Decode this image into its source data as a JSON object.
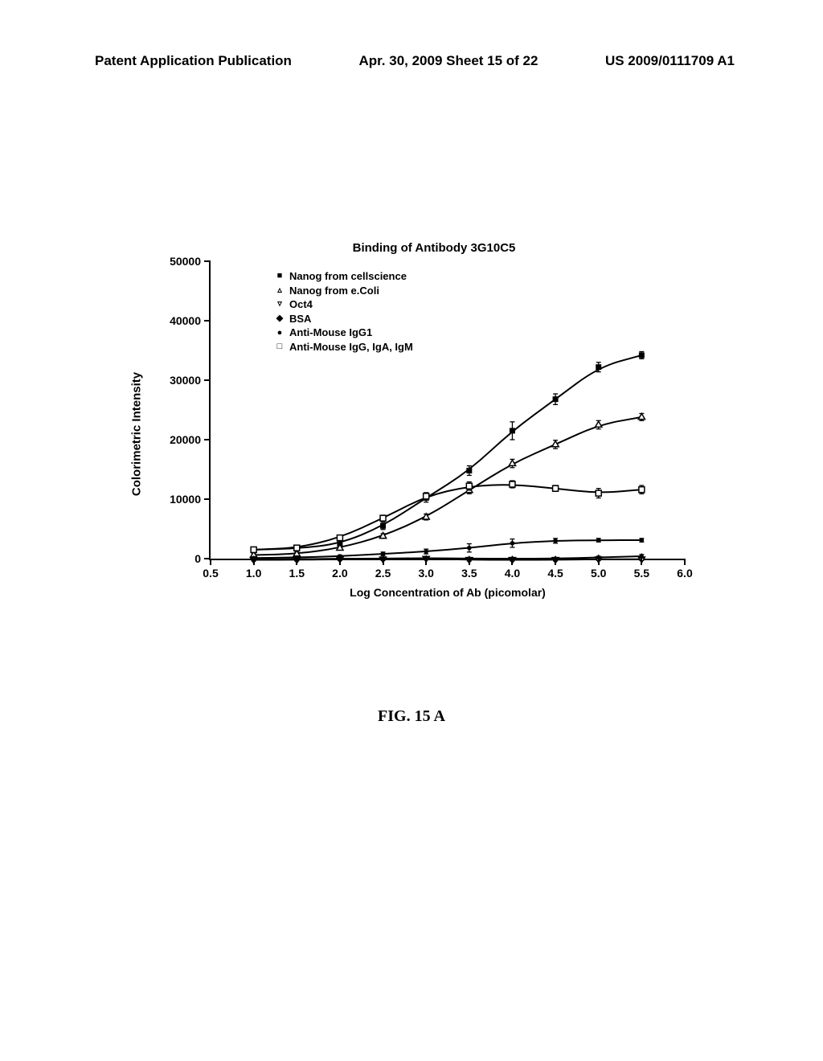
{
  "header": {
    "left": "Patent Application Publication",
    "center": "Apr. 30, 2009  Sheet 15 of 22",
    "right": "US 2009/0111709 A1"
  },
  "figure_label": "FIG. 15 A",
  "chart": {
    "type": "scatter-line",
    "title": "Binding of Antibody 3G10C5",
    "xlabel": "Log Concentration of Ab (picomolar)",
    "ylabel": "Colorimetric Intensity",
    "xlim": [
      0.5,
      6.0
    ],
    "ylim": [
      0,
      50000
    ],
    "xticks": [
      0.5,
      1.0,
      1.5,
      2.0,
      2.5,
      3.0,
      3.5,
      4.0,
      4.5,
      5.0,
      5.5,
      6.0
    ],
    "yticks": [
      0,
      10000,
      20000,
      30000,
      40000,
      50000
    ],
    "background_color": "#ffffff",
    "axis_color": "#000000",
    "line_color": "#000000",
    "line_width": 2,
    "marker_size": 7,
    "title_fontsize": 15,
    "label_fontsize": 14,
    "tick_fontsize": 14,
    "legend_fontsize": 13,
    "legend": [
      {
        "marker": "■",
        "label": "Nanog from cellscience"
      },
      {
        "marker": "▵",
        "label": "Nanog from e.Coli"
      },
      {
        "marker": "▿",
        "label": "Oct4"
      },
      {
        "marker": "◆",
        "label": "BSA"
      },
      {
        "marker": "●",
        "label": "Anti-Mouse IgG1"
      },
      {
        "marker": "□",
        "label": "Anti-Mouse IgG, IgA, IgM"
      }
    ],
    "series": [
      {
        "name": "Nanog from cellscience",
        "marker": "square-filled",
        "x": [
          1.0,
          1.5,
          2.0,
          2.5,
          3.0,
          3.5,
          4.0,
          4.5,
          5.0,
          5.5
        ],
        "y": [
          1500,
          1700,
          2500,
          5500,
          10200,
          14800,
          21500,
          26800,
          32200,
          34200
        ],
        "err": [
          400,
          400,
          400,
          600,
          700,
          800,
          1500,
          900,
          800,
          600
        ]
      },
      {
        "name": "Nanog from e.Coli",
        "marker": "triangle-up-open",
        "x": [
          1.0,
          1.5,
          2.0,
          2.5,
          3.0,
          3.5,
          4.0,
          4.5,
          5.0,
          5.5
        ],
        "y": [
          600,
          800,
          1800,
          3800,
          7000,
          11500,
          16000,
          19200,
          22500,
          23800
        ],
        "err": [
          300,
          300,
          300,
          400,
          500,
          600,
          700,
          700,
          700,
          600
        ]
      },
      {
        "name": "Oct4",
        "marker": "triangle-down-open",
        "x": [
          1.0,
          1.5,
          2.0,
          2.5,
          3.0,
          3.5,
          4.0,
          4.5,
          5.0,
          5.5
        ],
        "y": [
          -200,
          -200,
          -100,
          -100,
          0,
          -200,
          -200,
          -200,
          -100,
          -100
        ],
        "err": [
          200,
          200,
          200,
          200,
          200,
          200,
          200,
          200,
          200,
          200
        ]
      },
      {
        "name": "BSA",
        "marker": "diamond-filled",
        "x": [
          1.0,
          1.5,
          2.0,
          2.5,
          3.0,
          3.5,
          4.0,
          4.5,
          5.0,
          5.5
        ],
        "y": [
          -100,
          -100,
          0,
          0,
          100,
          0,
          0,
          0,
          200,
          400
        ],
        "err": [
          200,
          200,
          200,
          200,
          200,
          200,
          200,
          200,
          200,
          300
        ]
      },
      {
        "name": "Anti-Mouse IgG1",
        "marker": "circle-filled",
        "x": [
          1.0,
          1.5,
          2.0,
          2.5,
          3.0,
          3.5,
          4.0,
          4.5,
          5.0,
          5.5
        ],
        "y": [
          100,
          200,
          400,
          800,
          1200,
          1800,
          2600,
          3000,
          3100,
          3100
        ],
        "err": [
          200,
          200,
          200,
          300,
          400,
          700,
          700,
          400,
          300,
          300
        ]
      },
      {
        "name": "Anti-Mouse IgG IgA IgM",
        "marker": "square-open",
        "x": [
          1.0,
          1.5,
          2.0,
          2.5,
          3.0,
          3.5,
          4.0,
          4.5,
          5.0,
          5.5
        ],
        "y": [
          1500,
          1800,
          3500,
          6800,
          10500,
          12200,
          12500,
          11800,
          11000,
          11600
        ],
        "err": [
          300,
          300,
          400,
          500,
          600,
          700,
          600,
          500,
          800,
          700
        ]
      }
    ]
  }
}
